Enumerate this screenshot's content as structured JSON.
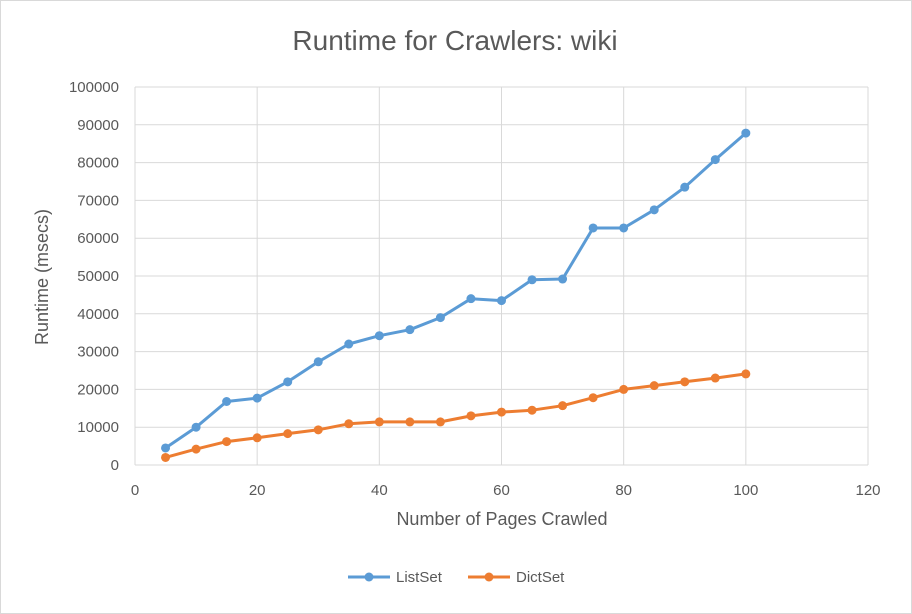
{
  "chart_data": {
    "type": "scatter",
    "title": "Runtime for Crawlers: wiki",
    "xlabel": "Number of Pages Crawled",
    "ylabel": "Runtime (msecs)",
    "xlim": [
      0,
      120
    ],
    "ylim": [
      0,
      100000
    ],
    "x_ticks": [
      0,
      20,
      40,
      60,
      80,
      100,
      120
    ],
    "y_ticks": [
      0,
      10000,
      20000,
      30000,
      40000,
      50000,
      60000,
      70000,
      80000,
      90000,
      100000
    ],
    "grid": true,
    "legend_position": "bottom",
    "x": [
      5,
      10,
      15,
      20,
      25,
      30,
      35,
      40,
      45,
      50,
      55,
      60,
      65,
      70,
      75,
      80,
      85,
      90,
      95,
      100
    ],
    "series": [
      {
        "name": "ListSet",
        "color": "#5b9bd5",
        "values": [
          4500,
          10000,
          16800,
          17700,
          22000,
          27300,
          32000,
          34200,
          35800,
          39000,
          44000,
          43500,
          49000,
          49200,
          62700,
          62700,
          67500,
          73500,
          80800,
          87800
        ]
      },
      {
        "name": "DictSet",
        "color": "#ed7d31",
        "values": [
          2000,
          4200,
          6200,
          7200,
          8300,
          9300,
          10900,
          11400,
          11400,
          11400,
          13000,
          14000,
          14500,
          15700,
          17800,
          20000,
          21000,
          22000,
          23000,
          24100
        ]
      }
    ]
  }
}
